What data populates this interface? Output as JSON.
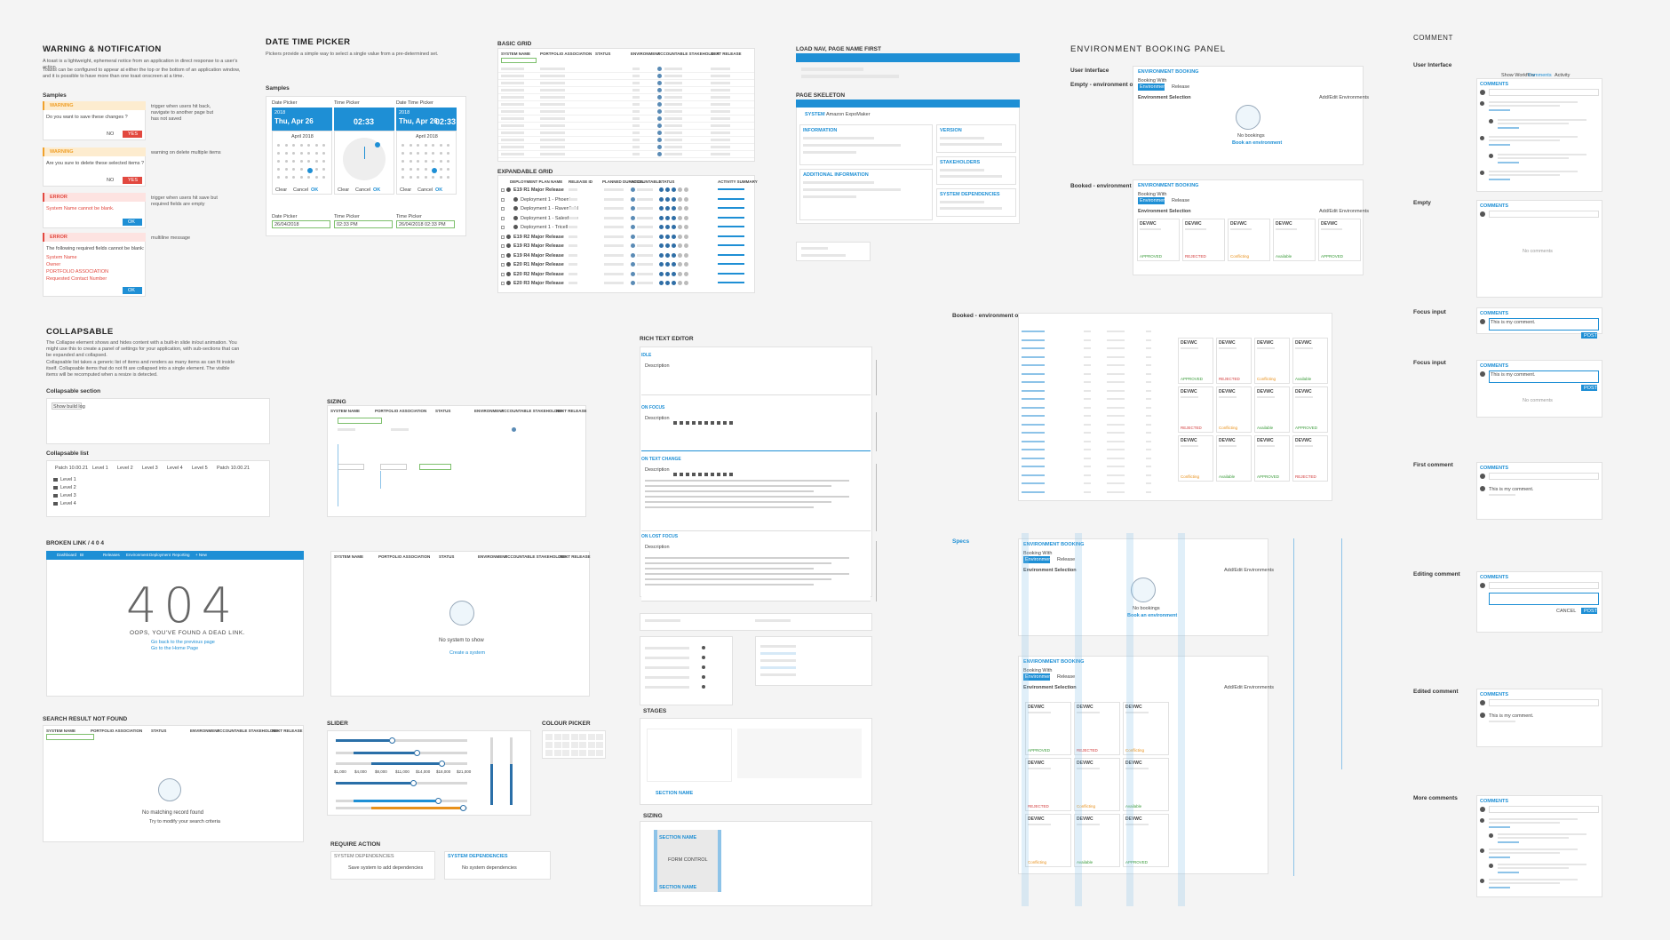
{
  "warning": {
    "title": "WARNING & NOTIFICATION",
    "description": "A toast is a lightweight, ephemeral notice from an application in direct response to a user's action.",
    "description_2": "Toasts can be configured to appear at either the top or the bottom of an application window, and it is possible to have more than one toast onscreen at a time.",
    "samples": "Samples",
    "toasts": [
      {
        "type": "WARNING",
        "message": "Do you want to save these changes ?",
        "buttons": [
          "NO",
          "YES"
        ],
        "note": "trigger when users hit back, navigate to another page but has not saved"
      },
      {
        "type": "WARNING",
        "message": "Are you sure to delete these selected items ?",
        "buttons": [
          "NO",
          "YES"
        ],
        "note": "warning on delete multiple items"
      },
      {
        "type": "ERROR",
        "message": "System Name cannot be blank.",
        "buttons": [
          "OK"
        ],
        "note": "trigger when users hit save but required fields are empty"
      },
      {
        "type": "ERROR",
        "message": "The following required fields cannot be blank:",
        "buttons": [
          "OK"
        ],
        "note": "multiline message",
        "list": [
          "System Name",
          "Owner",
          "PORTFOLIO ASSOCIATION",
          "Requested Contact Number"
        ]
      }
    ]
  },
  "date_time_picker": {
    "title": "DATE TIME PICKER",
    "description": "Pickers provide a simple way to select a single value from a pre-determined set.",
    "samples": "Samples",
    "pickers": [
      {
        "label": "Date Picker",
        "year": "2018",
        "date": "Thu, Apr 26",
        "month": "April 2018",
        "field_label": "Date Picker",
        "field_value": "26/04/2018"
      },
      {
        "label": "Time Picker",
        "time": "02:33",
        "field_label": "Time Picker",
        "field_value": "02:33 PM"
      },
      {
        "label": "Date Time Picker",
        "year": "2018",
        "date": "Thu, Apr 26",
        "time": "02:33",
        "month": "April 2018",
        "field_label": "Time Picker",
        "field_value": "26/04/2018 02:33 PM"
      }
    ],
    "actions": [
      "Clear",
      "Cancel",
      "OK"
    ]
  },
  "basic_grid": {
    "title": "BASIC GRID",
    "columns": [
      "SYSTEM NAME",
      "PORTFOLIO ASSOCIATION",
      "STATUS",
      "ENVIRONMENT",
      "ACCOUNTABLE STAKEHOLDER",
      "NEXT RELEASE"
    ]
  },
  "expandable_grid": {
    "title": "EXPANDABLE GRID",
    "columns": [
      "DEPLOYMENT PLAN NAME",
      "RELEASE ID",
      "PLANNED DURATION",
      "ACCOUNTABLE",
      "STATUS",
      "ACTIVITY SUMMARY"
    ],
    "rows": [
      "E19 R1 Major Release",
      "Deployment 1 - Phoenix",
      "Deployment 1 - Ravenfield",
      "Deployment 1 - Salesforce",
      "Deployment 1 - Tricell",
      "E19 R2 Major Release",
      "E19 R3 Major Release",
      "E19 R4 Major Release",
      "E20 R1 Major Release",
      "E20 R2 Major Release",
      "E20 R3 Major Release"
    ]
  },
  "load_nav": {
    "title": "LOAD NAV, PAGE NAME FIRST"
  },
  "page_skeleton": {
    "title": "PAGE SKELETON",
    "breadcrumb": "SYSTEM",
    "page_name": "Amazon ExpoMaker",
    "sections": [
      "INFORMATION",
      "ADDITIONAL INFORMATION"
    ],
    "side_sections": [
      "VERSION",
      "STAKEHOLDERS",
      "SYSTEM DEPENDENCIES"
    ]
  },
  "environment_booking": {
    "title": "ENVIRONMENT BOOKING PANEL",
    "label_ui": "User Interface",
    "label_empty": "Empty - environment only",
    "label_booked": "Booked - environment only",
    "label_booked_2": "Booked - environment only",
    "label_specs": "Specs",
    "panel_title": "ENVIRONMENT BOOKING",
    "booking_with": "Booking With",
    "options": [
      "Environment Only",
      "Release"
    ],
    "selection": "Environment Selection",
    "add_edit": "Add/Edit Environments",
    "no_bookings": "No bookings",
    "book": "Book an environment",
    "env_name": "DEVWC",
    "statuses": [
      "APPROVED",
      "REJECTED",
      "Conflicting",
      "Available"
    ]
  },
  "comment": {
    "title": "COMMENT",
    "labels": [
      "User Interface",
      "Empty",
      "Focus input",
      "Focus input",
      "First comment",
      "Editing comment",
      "Edited comment",
      "More comments"
    ],
    "panel_title": "COMMENTS",
    "no_comments": "No comments",
    "post": "POST",
    "cancel": "CANCEL",
    "tabs": [
      "Show Workflow",
      "Comments",
      "Activity"
    ],
    "sample": "This is my comment."
  },
  "collapsable": {
    "title": "COLLAPSABLE",
    "description": "The Collapse element shows and hides content with a built-in slide in/out animation. You might use this to create a panel of settings for your application, with sub-sections that can be expanded and collapsed.",
    "description_2": "Collapsable list takes a generic list of items and renders as many items as can fit inside itself. Collapsable items that do not fit are collapsed into a single element. The visible items will be recomputed when a resize is detected.",
    "section_label": "Collapsable section",
    "section_button": "Show build log",
    "list_label": "Collapsable list",
    "crumbs": [
      "Patch 10.00.21",
      "Level 1",
      "Level 2",
      "Level 3",
      "Level 4",
      "Level 5",
      "Patch 10.00.21"
    ],
    "items": [
      "Level 1",
      "Level 2",
      "Level 3",
      "Level 4"
    ]
  },
  "broken_link": {
    "title": "BROKEN LINK / 4 0 4",
    "nav": [
      "Dashboard",
      "BI",
      "Releases",
      "Environment",
      "Deployment",
      "Reporting",
      "+ New"
    ],
    "code": "404",
    "message": "OOPS, YOU'VE FOUND A DEAD LINK.",
    "links": [
      "Go back to the previous page",
      "Go to the Home Page"
    ]
  },
  "search_not_found": {
    "title": "SEARCH RESULT NOT FOUND",
    "message": "No matching record found",
    "hint": "Try to modify your search criteria"
  },
  "sizing": {
    "title": "SIZING"
  },
  "empty_grid": {
    "message": "No system to show",
    "action": "Create a system"
  },
  "slider": {
    "title": "SLIDER",
    "ticks": [
      "$1,000",
      "$4,000",
      "$8,000",
      "$11,000",
      "$14,000",
      "$18,000",
      "$21,000"
    ]
  },
  "colour_picker": {
    "title": "COLOUR PICKER"
  },
  "require_action": {
    "title": "REQUIRE ACTION",
    "heading": "SYSTEM DEPENDENCIES",
    "messages": [
      "Save system to add dependencies",
      "No system dependencies"
    ]
  },
  "rich_text_editor": {
    "title": "RICH TEXT EDITOR",
    "states": [
      "IDLE",
      "ON FOCUS",
      "ON TEXT CHANGE",
      "ON LOST FOCUS"
    ],
    "field": "Description"
  },
  "stages": {
    "title": "STAGES",
    "section": "SECTION NAME"
  },
  "sizing_2": {
    "title": "SIZING",
    "control": "FORM CONTROL"
  }
}
